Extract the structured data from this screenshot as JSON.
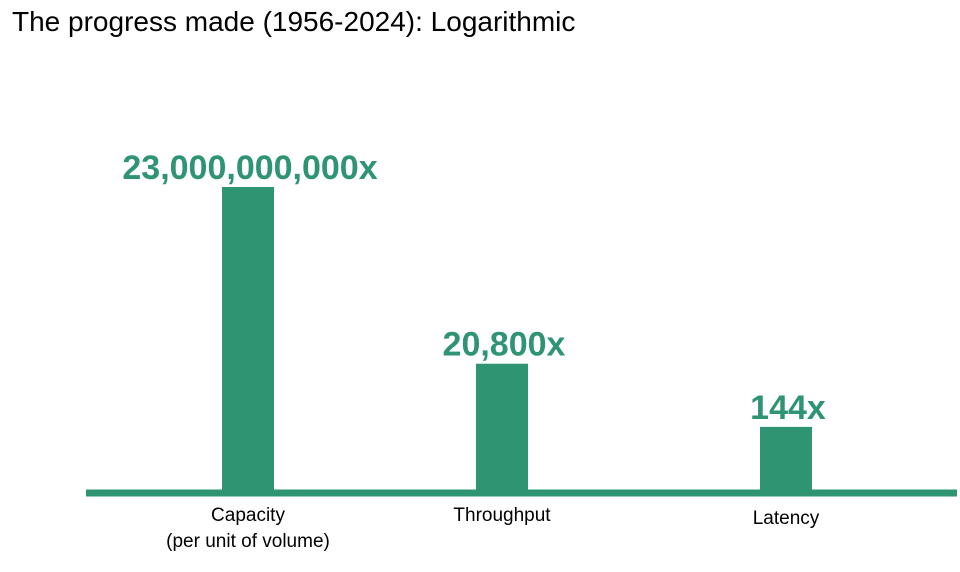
{
  "chart_data": {
    "type": "bar",
    "title": "The progress made (1956-2024): Logarithmic",
    "scale": "log",
    "grid": false,
    "legend": "none",
    "categories": [
      [
        "Capacity",
        "(per unit of volume)"
      ],
      [
        "Throughput"
      ],
      [
        "Latency"
      ]
    ],
    "values": [
      23000000000,
      20800,
      144
    ],
    "value_labels": [
      "23,000,000,000x",
      "20,800x",
      "144x"
    ],
    "ylim": [
      1,
      23000000000
    ],
    "colors": {
      "bar": "#2e9471",
      "baseline": "#2e9471",
      "value_text": "#2e9471"
    }
  }
}
